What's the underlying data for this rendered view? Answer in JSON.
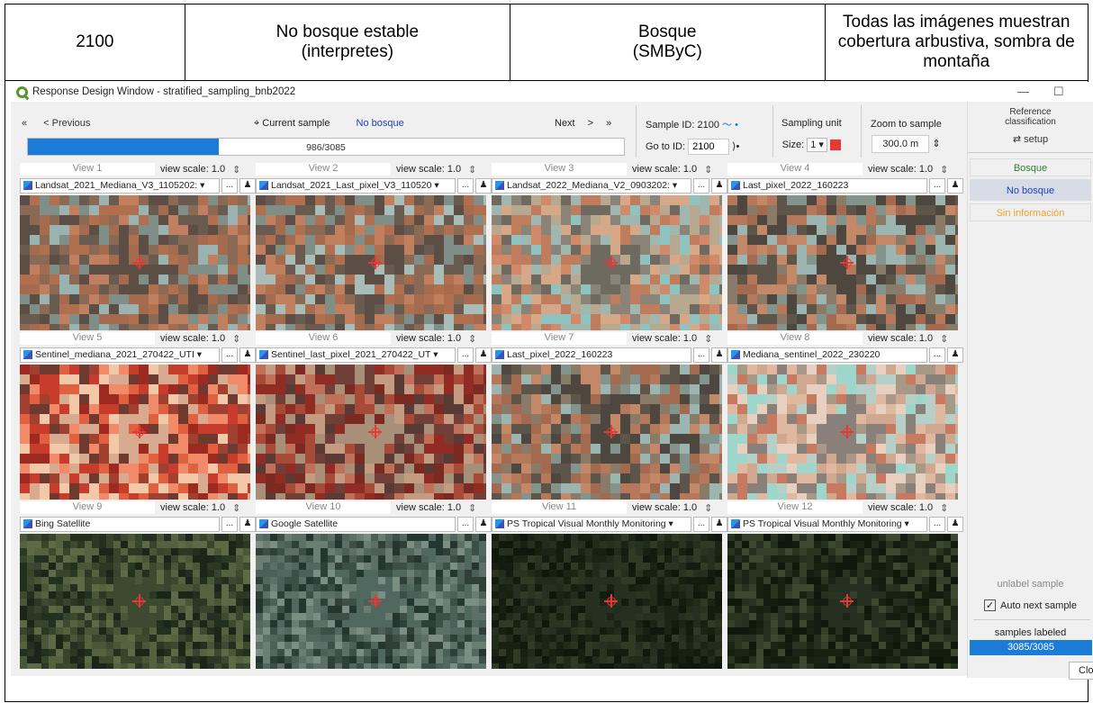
{
  "header_row": {
    "col1": "2100",
    "col2": "No bosque estable\n(interpretes)",
    "col3": "Bosque\n(SMByC)",
    "col4": "Todas las imágenes muestran\ncobertura arbustiva, sombra de\nmontaña"
  },
  "window": {
    "title": "Response Design Window - stratified_sampling_bnb2022",
    "minimize": "—",
    "maximize": "☐"
  },
  "nav": {
    "first": "«",
    "previous": "< Previous",
    "current_label": "⌖ Current sample",
    "current_value": "No bosque",
    "next": "Next",
    "next_arrow": ">",
    "last": "»"
  },
  "progress": {
    "text": "986/3085",
    "fraction": 0.3196
  },
  "sample": {
    "id_label": "Sample ID:",
    "id_value": "2100",
    "goto_label": "Go to ID:",
    "goto_value": "2100",
    "goto_btn": "⟩•"
  },
  "sampling_unit": {
    "title": "Sampling unit",
    "size_label": "Size:",
    "size_value": "1 ▾"
  },
  "zoom": {
    "title": "Zoom to sample",
    "value": "300.0 m",
    "spin": "⇕"
  },
  "right_panel": {
    "ref_title": "Reference\nclassification",
    "setup": "⇄ setup",
    "classes": [
      {
        "label": "Bosque",
        "color": "#2e7d32"
      },
      {
        "label": "No bosque",
        "color": "#1f3fb7"
      },
      {
        "label": "Sin información",
        "color": "#f0a030"
      }
    ],
    "unlabel": "unlabel sample",
    "auto_next": "Auto next sample",
    "check": "✓",
    "labeled_title": "samples labeled",
    "labeled_value": "3085/3085",
    "close": "Clo"
  },
  "views": [
    {
      "name": "View 1",
      "scale": "view scale: 1.0",
      "layer": "Landsat_2021_Mediana_V3_1105202: ▾"
    },
    {
      "name": "View 2",
      "scale": "view scale: 1.0",
      "layer": "Landsat_2021_Last_pixel_V3_110520 ▾"
    },
    {
      "name": "View 3",
      "scale": "view scale: 1.0",
      "layer": "Landsat_2022_Mediana_V2_0903202: ▾"
    },
    {
      "name": "View 4",
      "scale": "view scale: 1.0",
      "layer": "Last_pixel_2022_160223"
    },
    {
      "name": "View 5",
      "scale": "view scale: 1.0",
      "layer": "Sentinel_mediana_2021_270422_UTI ▾"
    },
    {
      "name": "View 6",
      "scale": "view scale: 1.0",
      "layer": "Sentinel_last_pixel_2021_270422_UT ▾"
    },
    {
      "name": "View 7",
      "scale": "view scale: 1.0",
      "layer": "Last_pixel_2022_160223"
    },
    {
      "name": "View 8",
      "scale": "view scale: 1.0",
      "layer": "Mediana_sentinel_2022_230220"
    },
    {
      "name": "View 9",
      "scale": "view scale: 1.0",
      "layer": "Bing Satellite"
    },
    {
      "name": "View 10",
      "scale": "view scale: 1.0",
      "layer": "Google Satellite"
    },
    {
      "name": "View 11",
      "scale": "view scale: 1.0",
      "layer": "PS Tropical Visual Monthly Monitoring ▾"
    },
    {
      "name": "View 12",
      "scale": "view scale: 1.0",
      "layer": "PS Tropical Visual Monthly Monitoring ▾"
    }
  ],
  "view_controls": {
    "spin": "⇕",
    "more": "...",
    "pin": "♟"
  }
}
